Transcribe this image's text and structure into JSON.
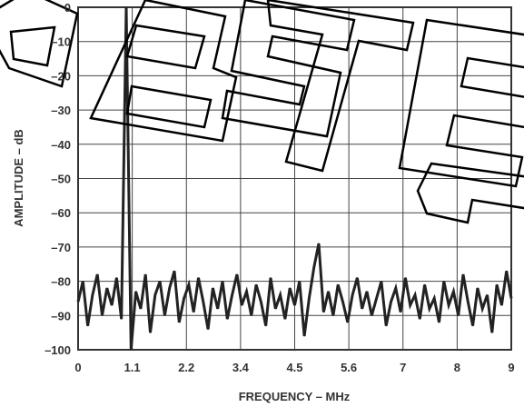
{
  "chart_data": {
    "type": "line",
    "title": "",
    "xlabel": "FREQUENCY – MHz",
    "ylabel": "AMPLITUDE – dB",
    "xlim": [
      0,
      9
    ],
    "ylim": [
      -100,
      0
    ],
    "x_ticks": [
      "0",
      "1.1",
      "2.2",
      "3.4",
      "4.5",
      "5.6",
      "7",
      "8",
      "9"
    ],
    "y_ticks": [
      "0",
      "–10",
      "–20",
      "–30",
      "–40",
      "–50",
      "–60",
      "–70",
      "–80",
      "–90",
      "–100"
    ],
    "grid": true,
    "watermark": "OBSOLETE",
    "series": [
      {
        "values": [
          {
            "x": 0.0,
            "y": -86
          },
          {
            "x": 0.1,
            "y": -80
          },
          {
            "x": 0.2,
            "y": -93
          },
          {
            "x": 0.3,
            "y": -84
          },
          {
            "x": 0.4,
            "y": -78
          },
          {
            "x": 0.5,
            "y": -90
          },
          {
            "x": 0.6,
            "y": -82
          },
          {
            "x": 0.7,
            "y": -87
          },
          {
            "x": 0.8,
            "y": -79
          },
          {
            "x": 0.9,
            "y": -91
          },
          {
            "x": 1.0,
            "y": 0
          },
          {
            "x": 1.1,
            "y": -100
          },
          {
            "x": 1.2,
            "y": -83
          },
          {
            "x": 1.3,
            "y": -88
          },
          {
            "x": 1.4,
            "y": -78
          },
          {
            "x": 1.5,
            "y": -95
          },
          {
            "x": 1.6,
            "y": -84
          },
          {
            "x": 1.7,
            "y": -80
          },
          {
            "x": 1.8,
            "y": -90
          },
          {
            "x": 1.9,
            "y": -82
          },
          {
            "x": 2.0,
            "y": -77
          },
          {
            "x": 2.1,
            "y": -92
          },
          {
            "x": 2.2,
            "y": -85
          },
          {
            "x": 2.3,
            "y": -81
          },
          {
            "x": 2.4,
            "y": -89
          },
          {
            "x": 2.5,
            "y": -79
          },
          {
            "x": 2.6,
            "y": -86
          },
          {
            "x": 2.7,
            "y": -94
          },
          {
            "x": 2.8,
            "y": -82
          },
          {
            "x": 2.9,
            "y": -88
          },
          {
            "x": 3.0,
            "y": -80
          },
          {
            "x": 3.1,
            "y": -91
          },
          {
            "x": 3.2,
            "y": -84
          },
          {
            "x": 3.3,
            "y": -78
          },
          {
            "x": 3.4,
            "y": -87
          },
          {
            "x": 3.5,
            "y": -83
          },
          {
            "x": 3.6,
            "y": -90
          },
          {
            "x": 3.7,
            "y": -81
          },
          {
            "x": 3.8,
            "y": -86
          },
          {
            "x": 3.9,
            "y": -93
          },
          {
            "x": 4.0,
            "y": -79
          },
          {
            "x": 4.1,
            "y": -88
          },
          {
            "x": 4.2,
            "y": -84
          },
          {
            "x": 4.3,
            "y": -91
          },
          {
            "x": 4.4,
            "y": -82
          },
          {
            "x": 4.5,
            "y": -87
          },
          {
            "x": 4.6,
            "y": -80
          },
          {
            "x": 4.7,
            "y": -96
          },
          {
            "x": 4.8,
            "y": -85
          },
          {
            "x": 4.9,
            "y": -76
          },
          {
            "x": 5.0,
            "y": -69
          },
          {
            "x": 5.1,
            "y": -89
          },
          {
            "x": 5.2,
            "y": -83
          },
          {
            "x": 5.3,
            "y": -90
          },
          {
            "x": 5.4,
            "y": -81
          },
          {
            "x": 5.5,
            "y": -86
          },
          {
            "x": 5.6,
            "y": -92
          },
          {
            "x": 5.7,
            "y": -84
          },
          {
            "x": 5.8,
            "y": -79
          },
          {
            "x": 5.9,
            "y": -88
          },
          {
            "x": 6.0,
            "y": -83
          },
          {
            "x": 6.1,
            "y": -90
          },
          {
            "x": 6.2,
            "y": -85
          },
          {
            "x": 6.3,
            "y": -80
          },
          {
            "x": 6.4,
            "y": -93
          },
          {
            "x": 6.5,
            "y": -86
          },
          {
            "x": 6.6,
            "y": -82
          },
          {
            "x": 6.7,
            "y": -89
          },
          {
            "x": 6.8,
            "y": -79
          },
          {
            "x": 6.9,
            "y": -87
          },
          {
            "x": 7.0,
            "y": -84
          },
          {
            "x": 7.1,
            "y": -91
          },
          {
            "x": 7.2,
            "y": -81
          },
          {
            "x": 7.3,
            "y": -88
          },
          {
            "x": 7.4,
            "y": -85
          },
          {
            "x": 7.5,
            "y": -92
          },
          {
            "x": 7.6,
            "y": -80
          },
          {
            "x": 7.7,
            "y": -87
          },
          {
            "x": 7.8,
            "y": -83
          },
          {
            "x": 7.9,
            "y": -90
          },
          {
            "x": 8.0,
            "y": -78
          },
          {
            "x": 8.1,
            "y": -86
          },
          {
            "x": 8.2,
            "y": -93
          },
          {
            "x": 8.3,
            "y": -82
          },
          {
            "x": 8.4,
            "y": -88
          },
          {
            "x": 8.5,
            "y": -84
          },
          {
            "x": 8.6,
            "y": -95
          },
          {
            "x": 8.7,
            "y": -81
          },
          {
            "x": 8.8,
            "y": -87
          },
          {
            "x": 8.9,
            "y": -77
          },
          {
            "x": 9.0,
            "y": -85
          }
        ]
      }
    ]
  }
}
